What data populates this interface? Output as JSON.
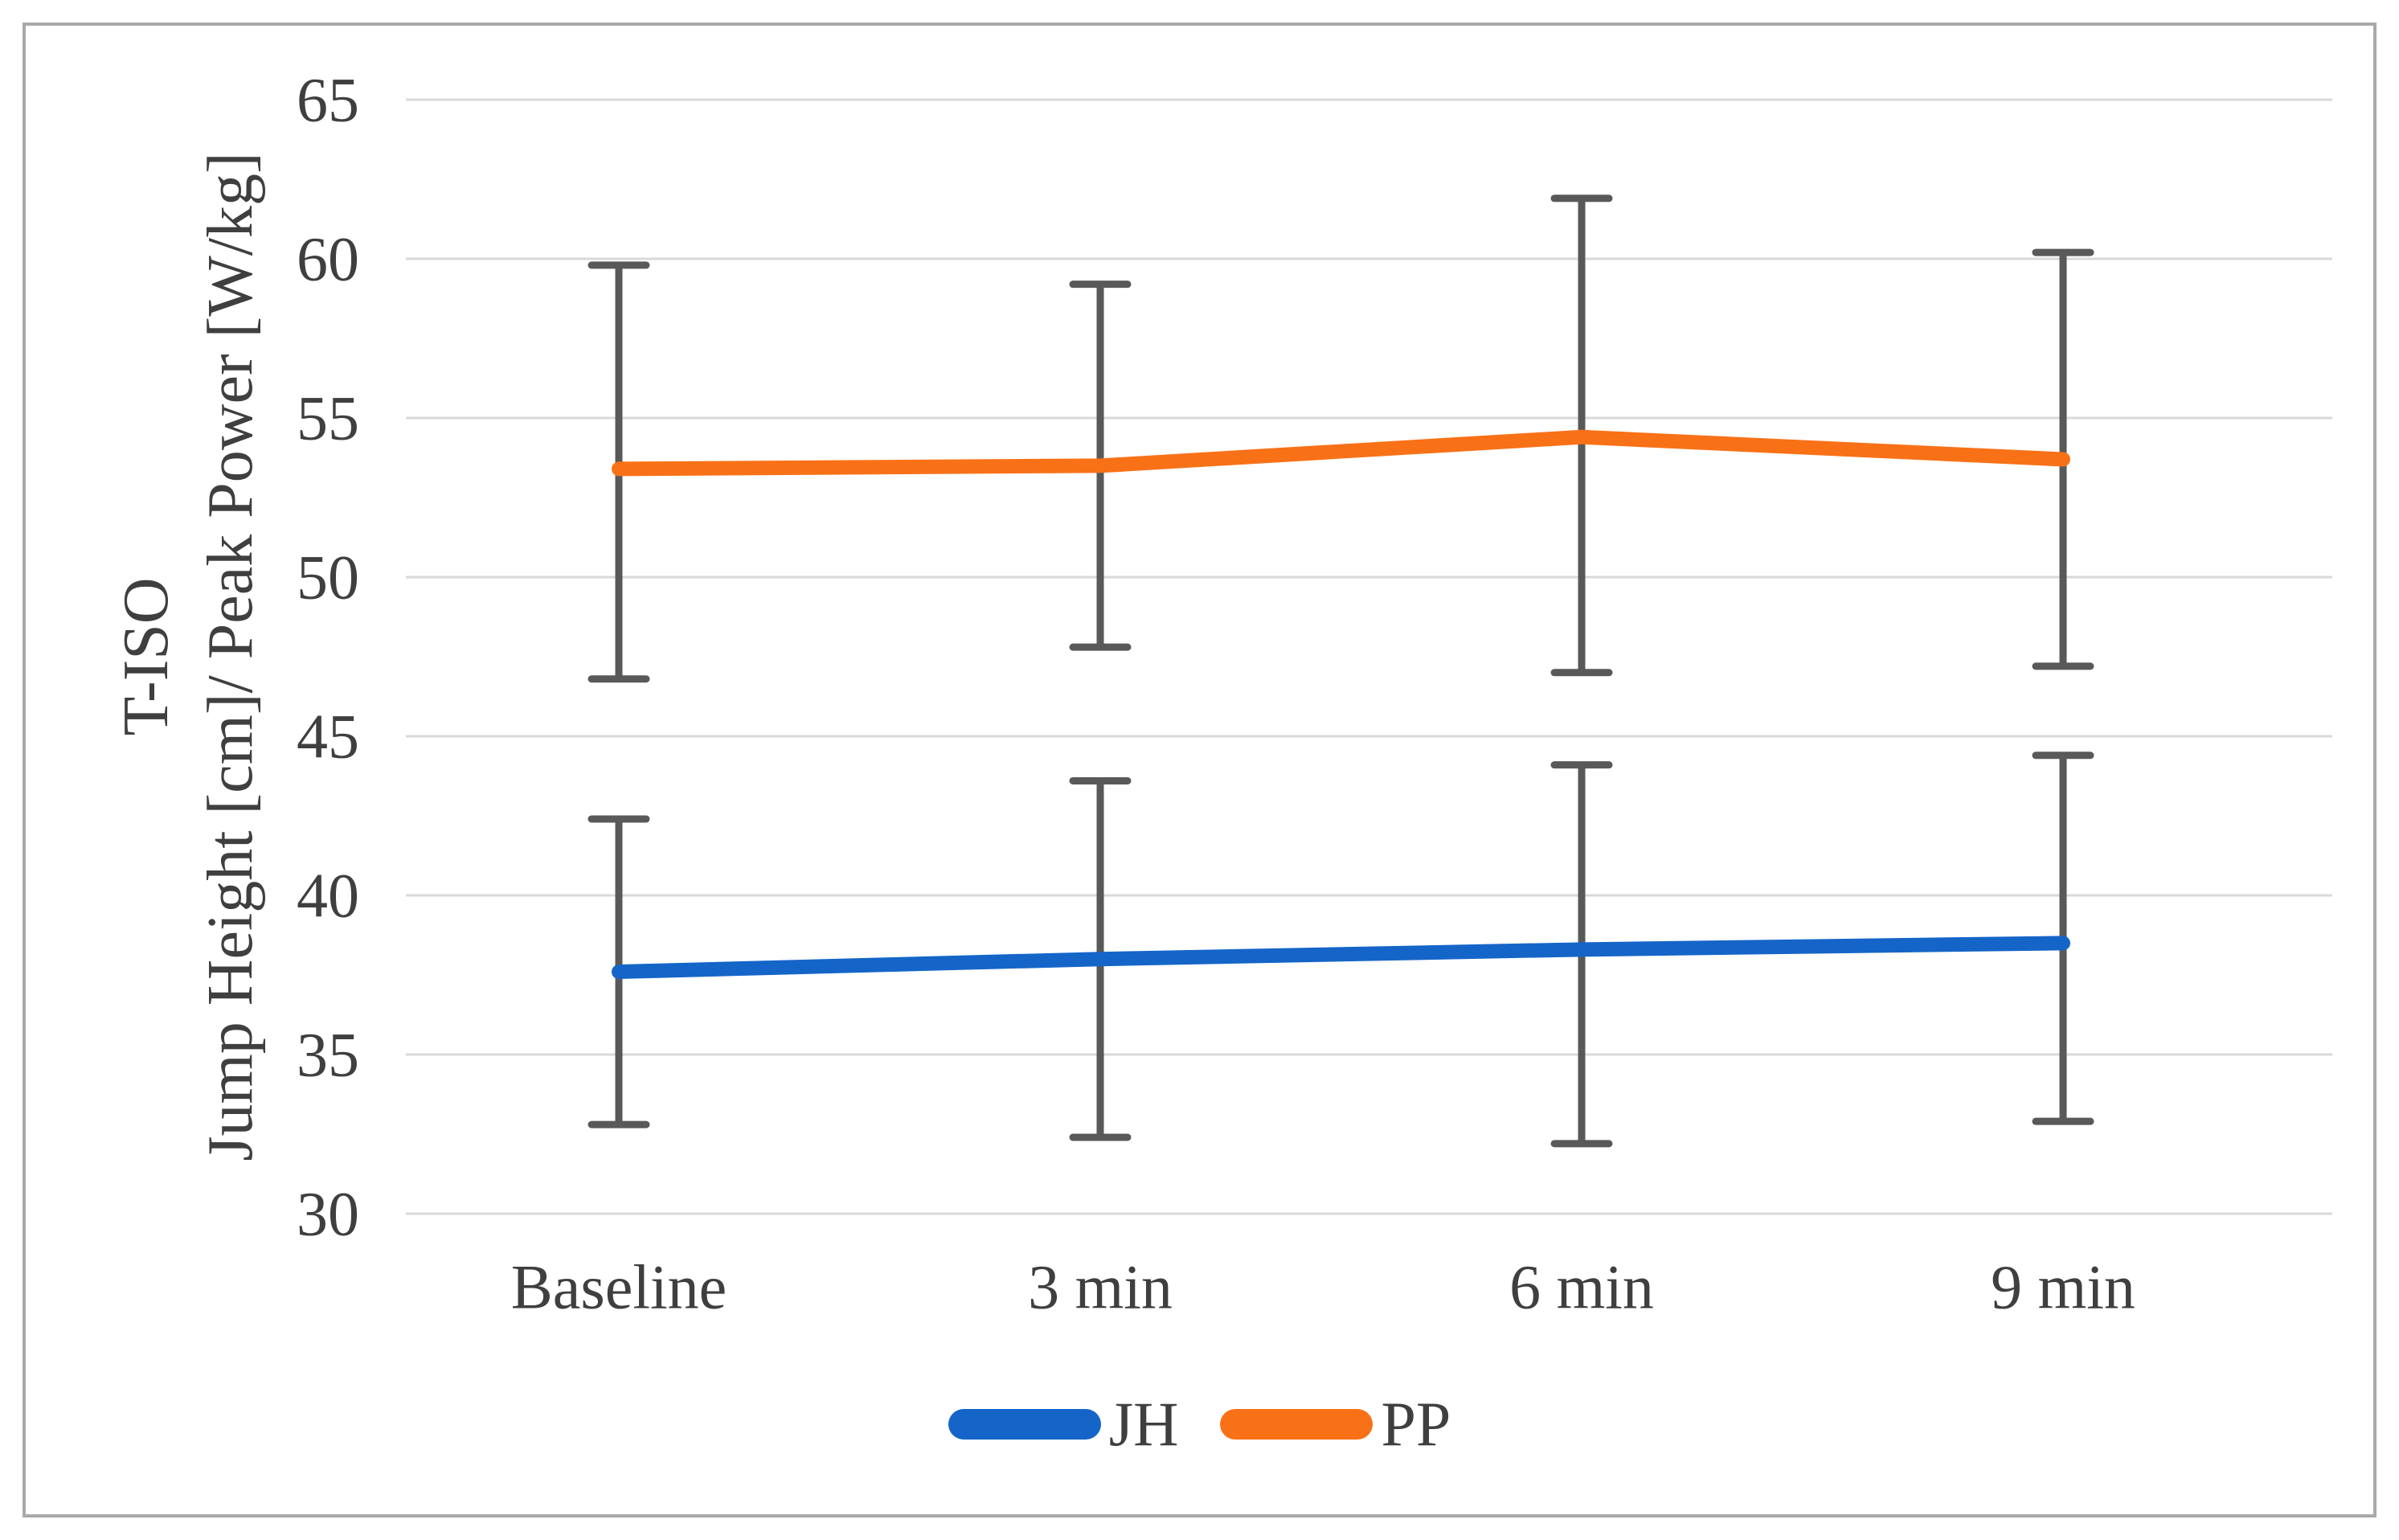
{
  "chart_data": {
    "type": "line",
    "categories": [
      "Baseline",
      "3 min",
      "6 min",
      "9 min"
    ],
    "series": [
      {
        "name": "JH",
        "color": "#1565C8",
        "values": [
          37.6,
          38.0,
          38.3,
          38.5
        ],
        "error_upper": [
          42.4,
          43.6,
          44.1,
          44.4
        ],
        "error_lower": [
          32.8,
          32.4,
          32.2,
          32.9
        ]
      },
      {
        "name": "PP",
        "color": "#F97117",
        "values": [
          53.4,
          53.5,
          54.4,
          53.7
        ],
        "error_upper": [
          59.8,
          59.2,
          61.9,
          60.2
        ],
        "error_lower": [
          46.8,
          47.8,
          47.0,
          47.2
        ]
      }
    ],
    "title": "",
    "xlabel": "",
    "ylabel_line1": "T-ISO",
    "ylabel_line2": "Jump Height [cm]/ Peak Power [W/kg]",
    "ylim": [
      30,
      65
    ],
    "yticks": [
      65,
      60,
      55,
      50,
      45,
      40,
      35,
      30
    ],
    "grid": "horizontal",
    "legend_position": "bottom",
    "colors": {
      "error_bar": "#595959",
      "gridline": "#D9D9D9",
      "text": "#3F3F3F",
      "frame_border": "#A9A9A9",
      "background": "#FFFFFF"
    }
  }
}
